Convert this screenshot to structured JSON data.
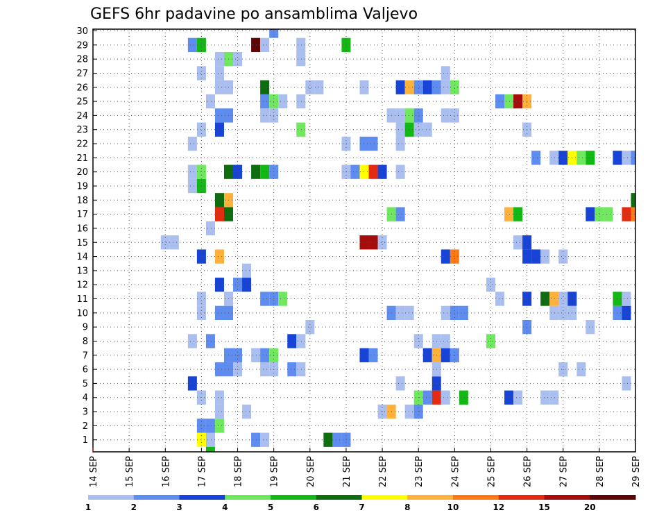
{
  "chart_data": {
    "type": "heatmap",
    "title": "GEFS 6hr padavine po ansamblima Valjevo",
    "xlabel": "",
    "ylabel": "",
    "x_tick_labels": [
      "14 SEP",
      "15 SEP",
      "16 SEP",
      "17 SEP",
      "18 SEP",
      "19 SEP",
      "20 SEP",
      "21 SEP",
      "22 SEP",
      "23 SEP",
      "24 SEP",
      "25 SEP",
      "26 SEP",
      "27 SEP",
      "28 SEP",
      "29 SEP"
    ],
    "x_range": [
      0,
      60
    ],
    "y_tick_labels": [
      "1",
      "2",
      "3",
      "4",
      "5",
      "6",
      "7",
      "8",
      "9",
      "10",
      "11",
      "12",
      "13",
      "14",
      "15",
      "16",
      "17",
      "18",
      "19",
      "20",
      "21",
      "22",
      "23",
      "24",
      "25",
      "26",
      "27",
      "28",
      "29",
      "30"
    ],
    "y_range": [
      1,
      30
    ],
    "grid": true,
    "colorbar": {
      "labels": [
        "1",
        "2",
        "3",
        "4",
        "5",
        "6",
        "7",
        "8",
        "10",
        "12",
        "15",
        "20"
      ],
      "colors": [
        "#aabfef",
        "#5f8def",
        "#1743d7",
        "#6fe85f",
        "#12b814",
        "#0d6d0f",
        "#ffff00",
        "#ffb13a",
        "#ff7a12",
        "#e52a12",
        "#a50d0d",
        "#5c0707"
      ]
    },
    "cells": [
      [
        12,
        1,
        6
      ],
      [
        12,
        2,
        1
      ],
      [
        13,
        1,
        0
      ],
      [
        13,
        0,
        4
      ],
      [
        18,
        1,
        1
      ],
      [
        19,
        1,
        0
      ],
      [
        26,
        1,
        5
      ],
      [
        27,
        1,
        1
      ],
      [
        28,
        1,
        1
      ],
      [
        13,
        2,
        1
      ],
      [
        14,
        2,
        3
      ],
      [
        14,
        3,
        0
      ],
      [
        17,
        3,
        0
      ],
      [
        32,
        3,
        0
      ],
      [
        33,
        3,
        7
      ],
      [
        35,
        3,
        0
      ],
      [
        36,
        3,
        1
      ],
      [
        12,
        4,
        0
      ],
      [
        14,
        4,
        0
      ],
      [
        36,
        4,
        3
      ],
      [
        37,
        4,
        1
      ],
      [
        38,
        4,
        9
      ],
      [
        39,
        4,
        0
      ],
      [
        41,
        4,
        4
      ],
      [
        46,
        4,
        2
      ],
      [
        47,
        4,
        0
      ],
      [
        50,
        4,
        0
      ],
      [
        51,
        4,
        0
      ],
      [
        11,
        5,
        2
      ],
      [
        34,
        5,
        0
      ],
      [
        38,
        5,
        2
      ],
      [
        59,
        5,
        0
      ],
      [
        14,
        6,
        1
      ],
      [
        15,
        6,
        1
      ],
      [
        16,
        6,
        0
      ],
      [
        19,
        6,
        0
      ],
      [
        20,
        6,
        0
      ],
      [
        22,
        6,
        1
      ],
      [
        23,
        6,
        0
      ],
      [
        38,
        6,
        0
      ],
      [
        52,
        6,
        0
      ],
      [
        54,
        6,
        0
      ],
      [
        15,
        7,
        1
      ],
      [
        16,
        7,
        1
      ],
      [
        18,
        7,
        0
      ],
      [
        19,
        7,
        1
      ],
      [
        20,
        7,
        3
      ],
      [
        30,
        7,
        2
      ],
      [
        31,
        7,
        1
      ],
      [
        37,
        7,
        2
      ],
      [
        38,
        7,
        7
      ],
      [
        39,
        7,
        2
      ],
      [
        40,
        7,
        1
      ],
      [
        11,
        8,
        0
      ],
      [
        13,
        8,
        1
      ],
      [
        22,
        8,
        2
      ],
      [
        23,
        8,
        0
      ],
      [
        36,
        8,
        0
      ],
      [
        38,
        8,
        0
      ],
      [
        39,
        8,
        0
      ],
      [
        44,
        8,
        3
      ],
      [
        24,
        9,
        0
      ],
      [
        48,
        9,
        1
      ],
      [
        55,
        9,
        0
      ],
      [
        12,
        10,
        0
      ],
      [
        14,
        10,
        1
      ],
      [
        15,
        10,
        1
      ],
      [
        33,
        10,
        1
      ],
      [
        34,
        10,
        0
      ],
      [
        35,
        10,
        0
      ],
      [
        39,
        10,
        0
      ],
      [
        40,
        10,
        1
      ],
      [
        41,
        10,
        1
      ],
      [
        51,
        10,
        0
      ],
      [
        52,
        10,
        0
      ],
      [
        53,
        10,
        0
      ],
      [
        58,
        10,
        1
      ],
      [
        59,
        10,
        2
      ],
      [
        12,
        11,
        0
      ],
      [
        15,
        11,
        0
      ],
      [
        19,
        11,
        1
      ],
      [
        20,
        11,
        1
      ],
      [
        21,
        11,
        3
      ],
      [
        45,
        11,
        0
      ],
      [
        48,
        11,
        2
      ],
      [
        50,
        11,
        5
      ],
      [
        51,
        11,
        7
      ],
      [
        52,
        11,
        0
      ],
      [
        53,
        11,
        2
      ],
      [
        58,
        11,
        4
      ],
      [
        59,
        11,
        0
      ],
      [
        14,
        12,
        2
      ],
      [
        16,
        12,
        1
      ],
      [
        17,
        12,
        2
      ],
      [
        44,
        12,
        0
      ],
      [
        17,
        13,
        0
      ],
      [
        14,
        14,
        7
      ],
      [
        12,
        14,
        2
      ],
      [
        39,
        14,
        2
      ],
      [
        40,
        14,
        8
      ],
      [
        48,
        14,
        2
      ],
      [
        49,
        14,
        2
      ],
      [
        50,
        14,
        0
      ],
      [
        52,
        14,
        0
      ],
      [
        8,
        15,
        0
      ],
      [
        9,
        15,
        0
      ],
      [
        30,
        15,
        10
      ],
      [
        31,
        15,
        10
      ],
      [
        32,
        15,
        0
      ],
      [
        47,
        15,
        0
      ],
      [
        48,
        15,
        2
      ],
      [
        13,
        16,
        0
      ],
      [
        14,
        17,
        9
      ],
      [
        15,
        17,
        5
      ],
      [
        33,
        17,
        3
      ],
      [
        34,
        17,
        1
      ],
      [
        46,
        17,
        7
      ],
      [
        47,
        17,
        4
      ],
      [
        55,
        17,
        2
      ],
      [
        56,
        17,
        3
      ],
      [
        57,
        17,
        3
      ],
      [
        59,
        17,
        9
      ],
      [
        60,
        17,
        8
      ],
      [
        14,
        18,
        5
      ],
      [
        15,
        18,
        7
      ],
      [
        60,
        18,
        5
      ],
      [
        11,
        19,
        0
      ],
      [
        12,
        19,
        4
      ],
      [
        11,
        20,
        0
      ],
      [
        12,
        20,
        3
      ],
      [
        15,
        20,
        5
      ],
      [
        16,
        20,
        2
      ],
      [
        18,
        20,
        5
      ],
      [
        19,
        20,
        4
      ],
      [
        20,
        20,
        1
      ],
      [
        28,
        20,
        0
      ],
      [
        29,
        20,
        1
      ],
      [
        30,
        20,
        6
      ],
      [
        31,
        20,
        9
      ],
      [
        32,
        20,
        2
      ],
      [
        34,
        20,
        0
      ],
      [
        49,
        21,
        1
      ],
      [
        51,
        21,
        0
      ],
      [
        52,
        21,
        2
      ],
      [
        53,
        21,
        6
      ],
      [
        54,
        21,
        3
      ],
      [
        55,
        21,
        4
      ],
      [
        58,
        21,
        2
      ],
      [
        59,
        21,
        0
      ],
      [
        60,
        21,
        1
      ],
      [
        11,
        22,
        0
      ],
      [
        28,
        22,
        0
      ],
      [
        30,
        22,
        1
      ],
      [
        31,
        22,
        1
      ],
      [
        34,
        22,
        0
      ],
      [
        12,
        23,
        0
      ],
      [
        14,
        23,
        2
      ],
      [
        23,
        23,
        3
      ],
      [
        34,
        23,
        0
      ],
      [
        35,
        23,
        4
      ],
      [
        36,
        23,
        0
      ],
      [
        37,
        23,
        0
      ],
      [
        48,
        23,
        0
      ],
      [
        14,
        24,
        1
      ],
      [
        15,
        24,
        1
      ],
      [
        19,
        24,
        0
      ],
      [
        20,
        24,
        0
      ],
      [
        33,
        24,
        0
      ],
      [
        34,
        24,
        0
      ],
      [
        35,
        24,
        3
      ],
      [
        36,
        24,
        1
      ],
      [
        39,
        24,
        0
      ],
      [
        40,
        24,
        0
      ],
      [
        13,
        25,
        0
      ],
      [
        19,
        25,
        1
      ],
      [
        20,
        25,
        3
      ],
      [
        21,
        25,
        0
      ],
      [
        23,
        25,
        0
      ],
      [
        45,
        25,
        1
      ],
      [
        46,
        25,
        3
      ],
      [
        47,
        25,
        10
      ],
      [
        48,
        25,
        7
      ],
      [
        14,
        26,
        0
      ],
      [
        15,
        26,
        0
      ],
      [
        19,
        26,
        5
      ],
      [
        24,
        26,
        0
      ],
      [
        25,
        26,
        0
      ],
      [
        30,
        26,
        0
      ],
      [
        34,
        26,
        2
      ],
      [
        35,
        26,
        7
      ],
      [
        36,
        26,
        1
      ],
      [
        37,
        26,
        2
      ],
      [
        38,
        26,
        1
      ],
      [
        39,
        26,
        0
      ],
      [
        40,
        26,
        3
      ],
      [
        12,
        27,
        0
      ],
      [
        14,
        27,
        0
      ],
      [
        39,
        27,
        0
      ],
      [
        14,
        28,
        0
      ],
      [
        15,
        28,
        3
      ],
      [
        16,
        28,
        0
      ],
      [
        23,
        28,
        0
      ],
      [
        11,
        29,
        1
      ],
      [
        12,
        29,
        4
      ],
      [
        18,
        29,
        11
      ],
      [
        19,
        29,
        0
      ],
      [
        23,
        29,
        0
      ],
      [
        28,
        29,
        4
      ],
      [
        20,
        30,
        1
      ]
    ]
  }
}
